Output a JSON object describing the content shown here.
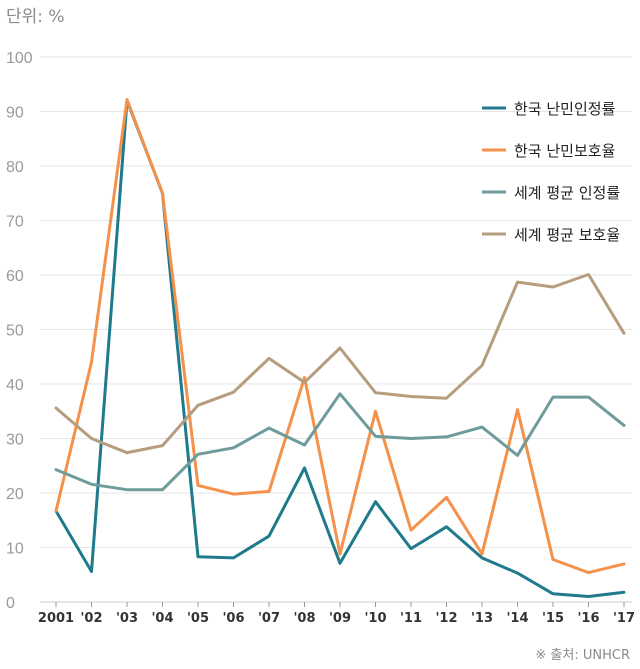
{
  "chart_data": {
    "type": "line",
    "unit_label": "단위: %",
    "source": "※ 출처: UNHCR",
    "categories": [
      "2001",
      "'02",
      "'03",
      "'04",
      "'05",
      "'06",
      "'07",
      "'08",
      "'09",
      "'10",
      "'11",
      "'12",
      "'13",
      "'14",
      "'15",
      "'16",
      "'17"
    ],
    "ylim": [
      0,
      100
    ],
    "yticks": [
      0,
      10,
      20,
      30,
      40,
      50,
      60,
      70,
      80,
      90,
      100
    ],
    "grid": true,
    "legend_position": "top-right",
    "series": [
      {
        "name": "한국 난민인정률",
        "color": "#1f7a8c",
        "values": [
          16.7,
          5.6,
          92,
          75,
          8.3,
          8.1,
          12.1,
          24.6,
          7.1,
          18.4,
          9.8,
          13.8,
          8.1,
          5.3,
          1.5,
          1.0,
          1.8
        ]
      },
      {
        "name": "한국 난민보호율",
        "color": "#f4914a",
        "values": [
          16.7,
          44,
          92.2,
          75,
          21.4,
          19.8,
          20.3,
          41.2,
          8.8,
          35,
          13.2,
          19.2,
          8.8,
          35.3,
          7.8,
          5.4,
          7
        ]
      },
      {
        "name": "세계 평균 인정률",
        "color": "#6f9b9b",
        "values": [
          24.3,
          21.6,
          20.6,
          20.6,
          27.1,
          28.3,
          31.9,
          28.8,
          38.2,
          30.4,
          30,
          30.3,
          32.1,
          26.9,
          37.6,
          37.6,
          32.4
        ]
      },
      {
        "name": "세계 평균 보호율",
        "color": "#b59d7e",
        "values": [
          35.6,
          30,
          27.4,
          28.7,
          36.1,
          38.5,
          44.7,
          40.3,
          46.6,
          38.4,
          37.7,
          37.4,
          43.4,
          58.7,
          57.8,
          60.1,
          49.3
        ]
      }
    ]
  }
}
